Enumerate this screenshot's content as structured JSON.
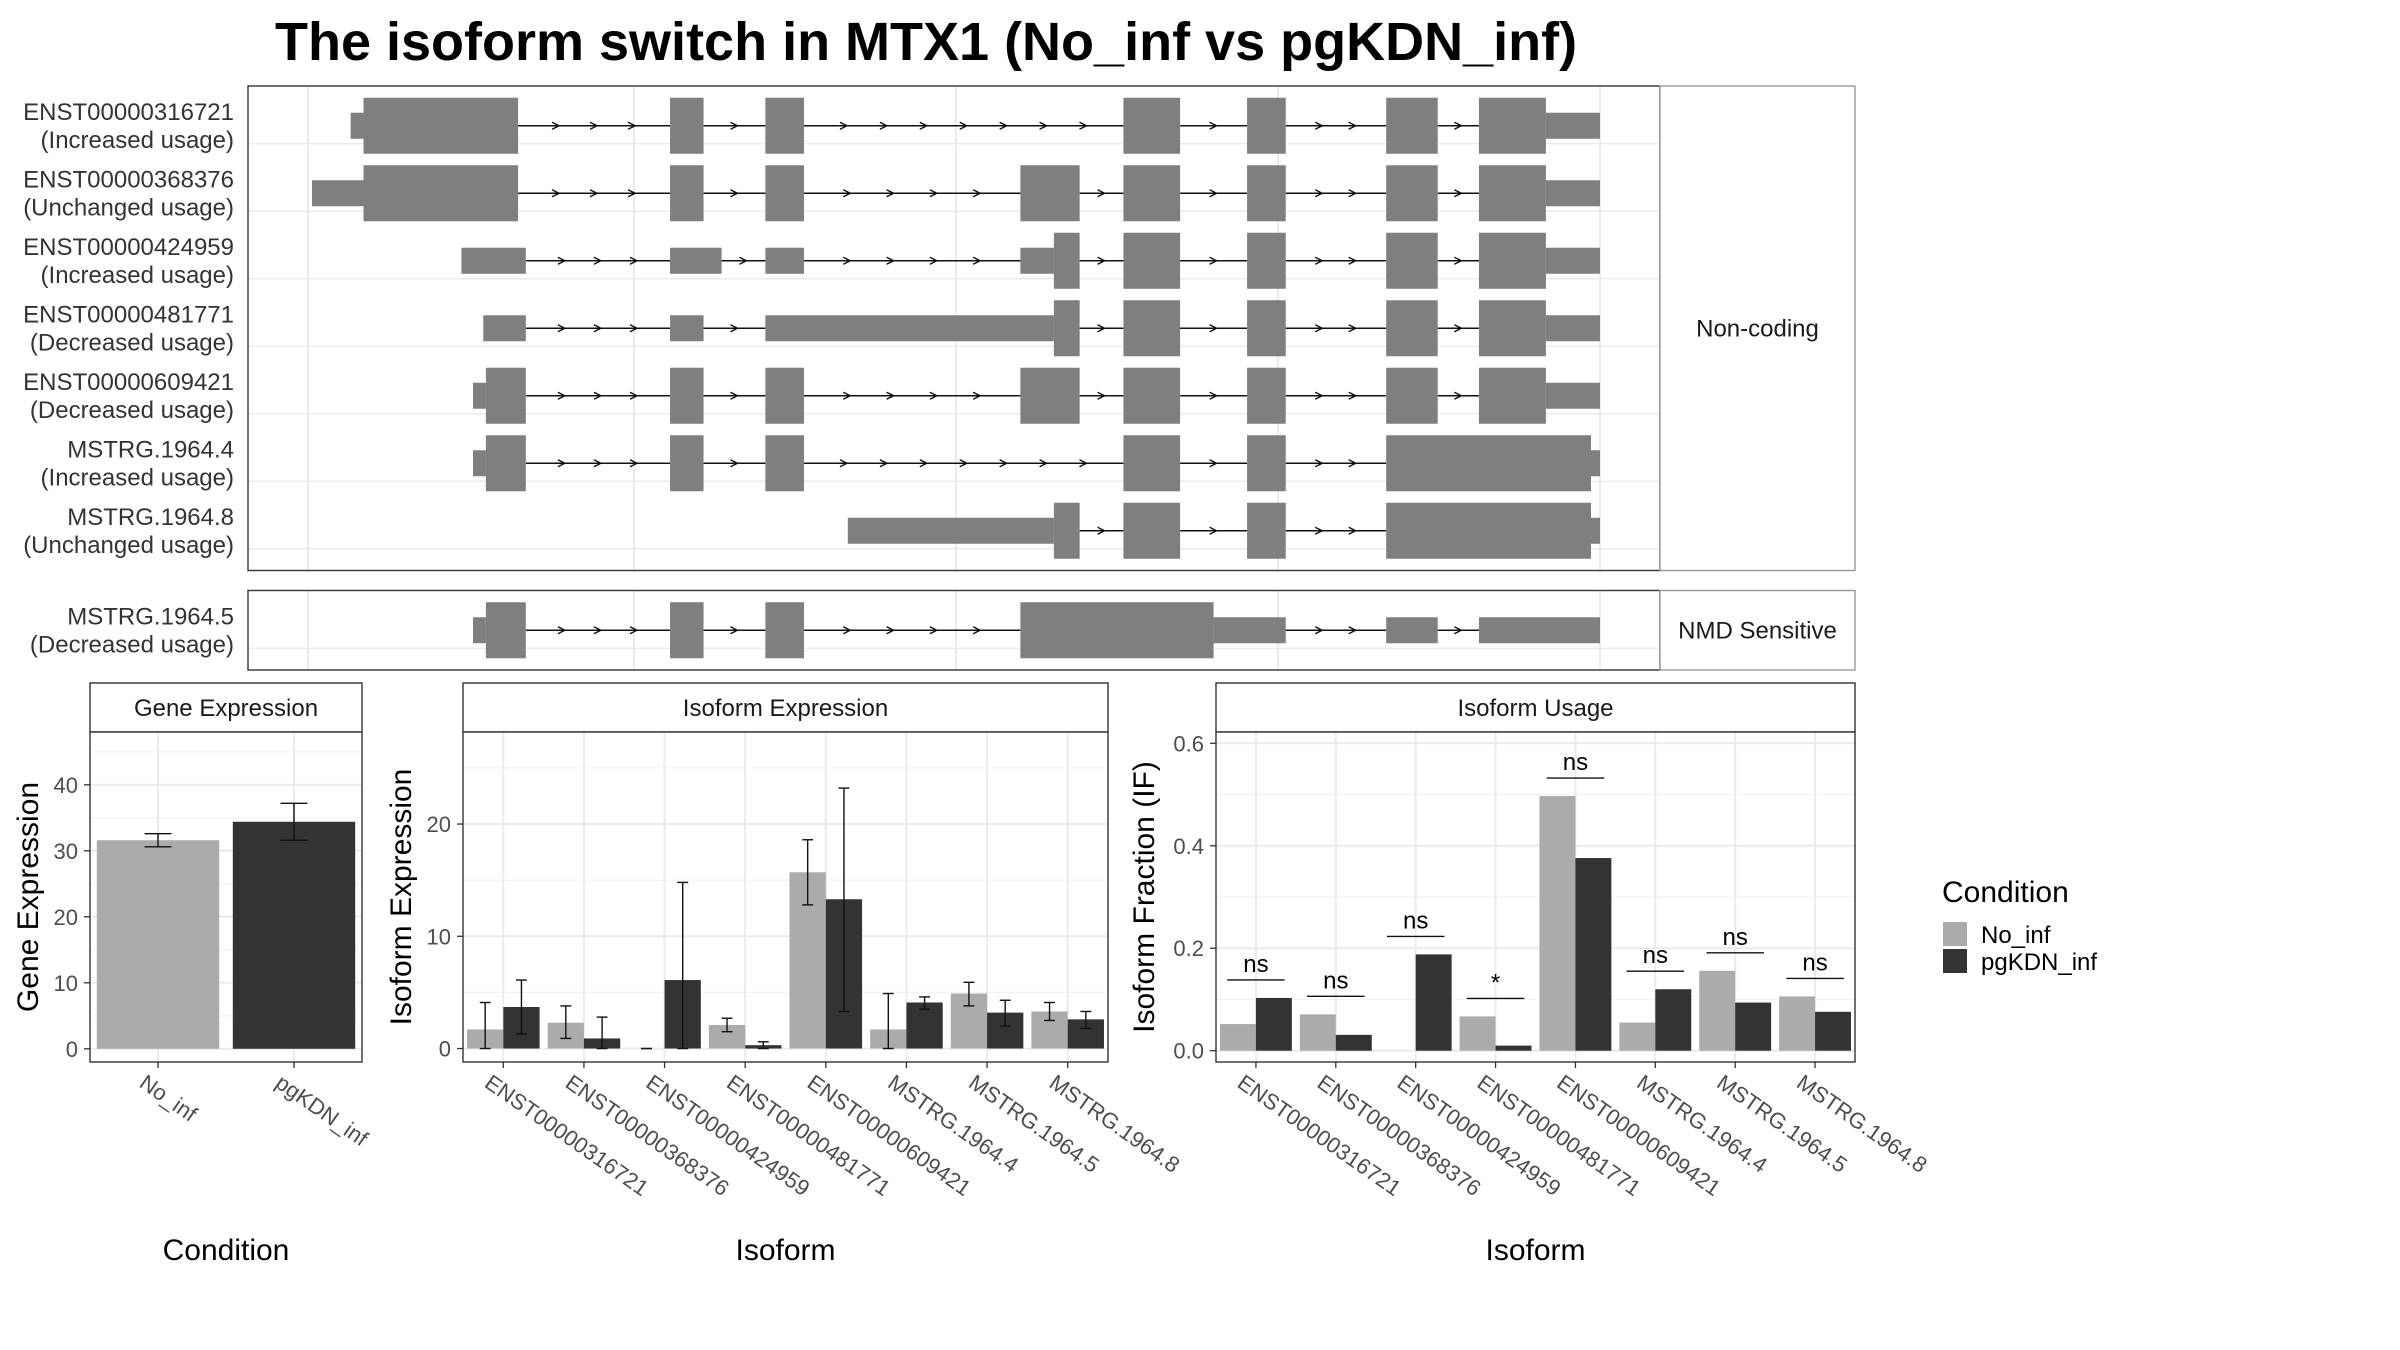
{
  "title": "The isoform switch in MTX1 (No_inf vs pgKDN_inf)",
  "colors": {
    "No_inf": "#ababab",
    "pgKDN_inf": "#333333",
    "exon": "#7f7f7f",
    "grid": "#ebebeb",
    "frame": "#333333"
  },
  "structure": {
    "x_range": [
      0,
      1000
    ],
    "groups": [
      {
        "name": "Non-coding",
        "transcripts": [
          {
            "id": "ENST00000316721",
            "status": "(Increased usage)",
            "cds": [
              [
                40,
                160
              ],
              [
                278,
                304
              ],
              [
                352,
                382
              ],
              [
                630,
                674
              ],
              [
                726,
                756
              ],
              [
                834,
                874
              ],
              [
                906,
                958
              ]
            ],
            "utr": [
              [
                30,
                40
              ],
              [
                958,
                1000
              ]
            ]
          },
          {
            "id": "ENST00000368376",
            "status": "(Unchanged usage)",
            "cds": [
              [
                40,
                160
              ],
              [
                278,
                304
              ],
              [
                352,
                382
              ],
              [
                550,
                596
              ],
              [
                630,
                674
              ],
              [
                726,
                756
              ],
              [
                834,
                874
              ],
              [
                906,
                958
              ]
            ],
            "utr": [
              [
                0,
                40
              ],
              [
                958,
                1000
              ]
            ]
          },
          {
            "id": "ENST00000424959",
            "status": "(Increased usage)",
            "cds": [
              [
                576,
                596
              ],
              [
                630,
                674
              ],
              [
                726,
                756
              ],
              [
                834,
                874
              ],
              [
                906,
                958
              ]
            ],
            "utr": [
              [
                116,
                166
              ],
              [
                278,
                318
              ],
              [
                352,
                382
              ],
              [
                550,
                576
              ],
              [
                958,
                1000
              ]
            ]
          },
          {
            "id": "ENST00000481771",
            "status": "(Decreased usage)",
            "cds": [
              [
                576,
                596
              ],
              [
                630,
                674
              ],
              [
                726,
                756
              ],
              [
                834,
                874
              ],
              [
                906,
                958
              ]
            ],
            "utr": [
              [
                133,
                166
              ],
              [
                278,
                304
              ],
              [
                352,
                576
              ],
              [
                958,
                1000
              ]
            ]
          },
          {
            "id": "ENST00000609421",
            "status": "(Decreased usage)",
            "cds": [
              [
                135,
                166
              ],
              [
                278,
                304
              ],
              [
                352,
                382
              ],
              [
                550,
                596
              ],
              [
                630,
                674
              ],
              [
                726,
                756
              ],
              [
                834,
                874
              ],
              [
                906,
                958
              ]
            ],
            "utr": [
              [
                125,
                135
              ],
              [
                958,
                1000
              ]
            ]
          },
          {
            "id": "MSTRG.1964.4",
            "status": "(Increased usage)",
            "cds": [
              [
                135,
                166
              ],
              [
                278,
                304
              ],
              [
                352,
                382
              ],
              [
                630,
                674
              ],
              [
                726,
                756
              ],
              [
                834,
                993
              ]
            ],
            "utr": [
              [
                125,
                135
              ],
              [
                993,
                1000
              ]
            ]
          },
          {
            "id": "MSTRG.1964.8",
            "status": "(Unchanged usage)",
            "cds": [
              [
                576,
                596
              ],
              [
                630,
                674
              ],
              [
                726,
                756
              ],
              [
                834,
                993
              ]
            ],
            "utr": [
              [
                416,
                576
              ],
              [
                993,
                1000
              ]
            ]
          }
        ]
      },
      {
        "name": "NMD Sensitive",
        "transcripts": [
          {
            "id": "MSTRG.1964.5",
            "status": "(Decreased usage)",
            "cds": [
              [
                135,
                166
              ],
              [
                278,
                304
              ],
              [
                352,
                382
              ],
              [
                550,
                700
              ]
            ],
            "utr": [
              [
                125,
                135
              ],
              [
                700,
                756
              ],
              [
                834,
                874
              ],
              [
                906,
                1000
              ]
            ]
          }
        ]
      }
    ]
  },
  "chart_data": [
    {
      "type": "bar",
      "panel": "Gene Expression",
      "xlabel": "Condition",
      "ylabel": "Gene Expression",
      "categories": [
        "No_inf",
        "pgKDN_inf"
      ],
      "values": [
        31.6,
        34.4
      ],
      "error": [
        [
          30.6,
          32.6
        ],
        [
          31.6,
          37.2
        ]
      ],
      "ylim": [
        -2,
        48
      ],
      "yticks": [
        0,
        10,
        20,
        30,
        40
      ]
    },
    {
      "type": "bar",
      "panel": "Isoform Expression",
      "xlabel": "Isoform",
      "ylabel": "Isoform Expression",
      "categories": [
        "ENST00000316721",
        "ENST00000368376",
        "ENST00000424959",
        "ENST00000481771",
        "ENST00000609421",
        "MSTRG.1964.4",
        "MSTRG.1964.5",
        "MSTRG.1964.8"
      ],
      "series": [
        {
          "name": "No_inf",
          "values": [
            1.7,
            2.3,
            0.0,
            2.1,
            15.7,
            1.7,
            4.9,
            3.3
          ],
          "error": [
            [
              0.0,
              4.1
            ],
            [
              0.9,
              3.8
            ],
            [
              0.0,
              0.0
            ],
            [
              1.5,
              2.7
            ],
            [
              12.8,
              18.6
            ],
            [
              0.0,
              4.9
            ],
            [
              3.8,
              5.9
            ],
            [
              2.5,
              4.1
            ]
          ]
        },
        {
          "name": "pgKDN_inf",
          "values": [
            3.7,
            0.9,
            6.1,
            0.3,
            13.3,
            4.1,
            3.2,
            2.6
          ],
          "error": [
            [
              1.3,
              6.1
            ],
            [
              0.0,
              2.8
            ],
            [
              0.0,
              14.8
            ],
            [
              0.0,
              0.6
            ],
            [
              3.3,
              23.2
            ],
            [
              3.5,
              4.6
            ],
            [
              2.0,
              4.3
            ],
            [
              1.8,
              3.3
            ]
          ]
        }
      ],
      "ylim": [
        -1.2,
        28.2
      ],
      "yticks": [
        0,
        10,
        20
      ]
    },
    {
      "type": "bar",
      "panel": "Isoform Usage",
      "xlabel": "Isoform",
      "ylabel": "Isoform Fraction (IF)",
      "categories": [
        "ENST00000316721",
        "ENST00000368376",
        "ENST00000424959",
        "ENST00000481771",
        "ENST00000609421",
        "MSTRG.1964.4",
        "MSTRG.1964.5",
        "MSTRG.1964.8"
      ],
      "series": [
        {
          "name": "No_inf",
          "values": [
            0.052,
            0.071,
            0.0,
            0.067,
            0.497,
            0.055,
            0.156,
            0.106
          ]
        },
        {
          "name": "pgKDN_inf",
          "values": [
            0.103,
            0.031,
            0.188,
            0.01,
            0.376,
            0.12,
            0.094,
            0.076
          ]
        }
      ],
      "significance": [
        "ns",
        "ns",
        "ns",
        "*",
        "ns",
        "ns",
        "ns",
        "ns"
      ],
      "ylim": [
        -0.022,
        0.622
      ],
      "yticks": [
        0.0,
        0.2,
        0.4,
        0.6
      ]
    }
  ],
  "legend": {
    "title": "Condition",
    "items": [
      "No_inf",
      "pgKDN_inf"
    ],
    "position": "right"
  }
}
